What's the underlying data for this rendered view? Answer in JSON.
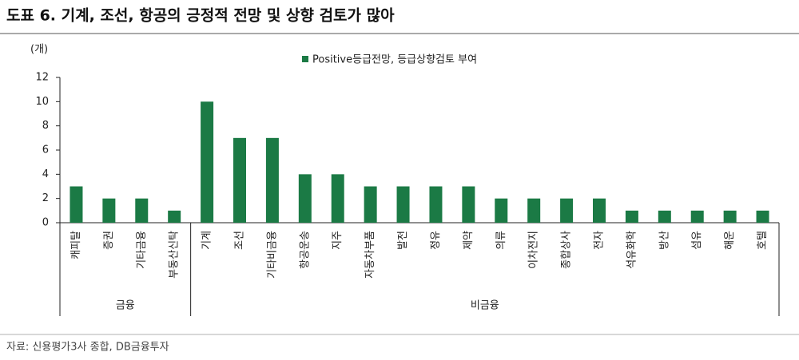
{
  "chart_data": {
    "type": "bar",
    "title": "도표 6. 기계, 조선, 항공의 긍정적 전망 및 상향 검토가 많아",
    "y_unit": "(개)",
    "source": "자료: 신용평가3사 종합, DB금융투자",
    "categories": [
      "캐피탈",
      "증권",
      "기타금융",
      "부동산신탁",
      "기계",
      "조선",
      "기타비금융",
      "항공운송",
      "지주",
      "자동차부품",
      "발전",
      "정유",
      "제약",
      "의류",
      "이차전지",
      "종합상사",
      "전자",
      "석유화학",
      "방산",
      "섬유",
      "해운",
      "호텔"
    ],
    "series": [
      {
        "name": "Positive등급전망, 등급상향검토 부여",
        "color": "#1b7a45",
        "values": [
          3,
          2,
          2,
          1,
          10,
          7,
          7,
          4,
          4,
          3,
          3,
          3,
          3,
          2,
          2,
          2,
          2,
          1,
          1,
          1,
          1,
          1
        ]
      }
    ],
    "groups": [
      {
        "name": "금융",
        "count": 4
      },
      {
        "name": "비금융",
        "count": 18
      }
    ],
    "ylim": [
      0,
      12
    ],
    "yticks": [
      0,
      2,
      4,
      6,
      8,
      10,
      12
    ],
    "grid": false
  }
}
